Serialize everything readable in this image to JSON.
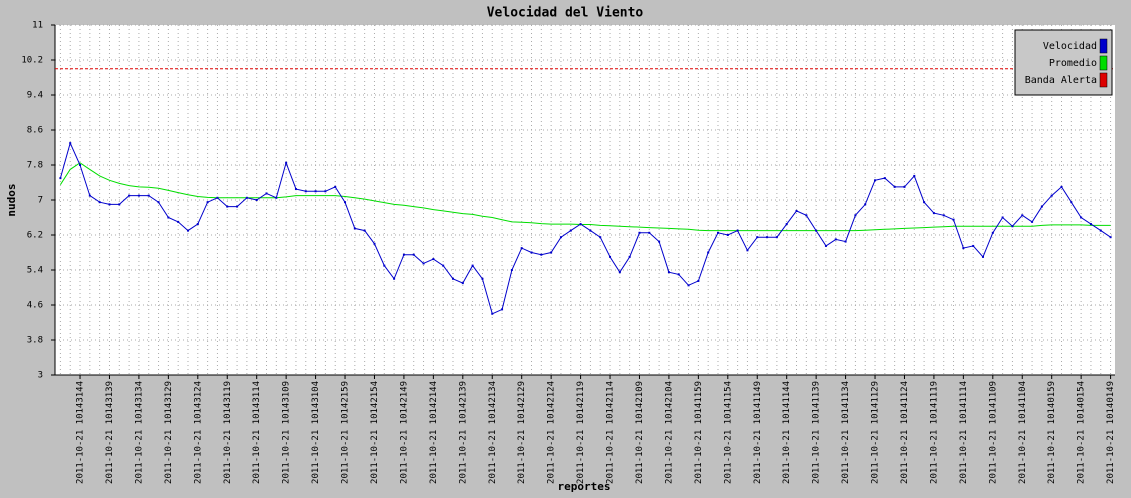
{
  "chart_data": {
    "type": "line",
    "title": "Velocidad del Viento",
    "y_label": "nudos",
    "x_label": "reportes",
    "ylim": [
      3,
      11
    ],
    "yticks": [
      3,
      3.8,
      4.6,
      5.4,
      6.2,
      7,
      7.8,
      8.6,
      9.4,
      10.2,
      11
    ],
    "grid": true,
    "legend": "top-right",
    "categories": [
      null,
      null,
      "2011-10-21 10143144",
      null,
      null,
      "2011-10-21 10143139",
      null,
      null,
      "2011-10-21 10143134",
      null,
      null,
      "2011-10-21 10143129",
      null,
      null,
      "2011-10-21 10143124",
      null,
      null,
      "2011-10-21 10143119",
      null,
      null,
      "2011-10-21 10143114",
      null,
      null,
      "2011-10-21 10143109",
      null,
      null,
      "2011-10-21 10143104",
      null,
      null,
      "2011-10-21 10142159",
      null,
      null,
      "2011-10-21 10142154",
      null,
      null,
      "2011-10-21 10142149",
      null,
      null,
      "2011-10-21 10142144",
      null,
      null,
      "2011-10-21 10142139",
      null,
      null,
      "2011-10-21 10142134",
      null,
      null,
      "2011-10-21 10142129",
      null,
      null,
      "2011-10-21 10142124",
      null,
      null,
      "2011-10-21 10142119",
      null,
      null,
      "2011-10-21 10142114",
      null,
      null,
      "2011-10-21 10142109",
      null,
      null,
      "2011-10-21 10142104",
      null,
      null,
      "2011-10-21 10141159",
      null,
      null,
      "2011-10-21 10141154",
      null,
      null,
      "2011-10-21 10141149",
      null,
      null,
      "2011-10-21 10141144",
      null,
      null,
      "2011-10-21 10141139",
      null,
      null,
      "2011-10-21 10141134",
      null,
      null,
      "2011-10-21 10141129",
      null,
      null,
      "2011-10-21 10141124",
      null,
      null,
      "2011-10-21 10141119",
      null,
      null,
      "2011-10-21 10141114",
      null,
      null,
      "2011-10-21 10141109",
      null,
      null,
      "2011-10-21 10141104",
      null,
      null,
      "2011-10-21 10140159",
      null,
      null,
      "2011-10-21 10140154",
      null,
      null,
      "2011-10-21 10140149"
    ],
    "series": [
      {
        "name": "Velocidad",
        "color": "#0000cc",
        "values": [
          7.5,
          8.3,
          7.8,
          7.1,
          6.95,
          6.9,
          6.9,
          7.1,
          7.1,
          7.1,
          6.95,
          6.6,
          6.5,
          6.3,
          6.45,
          6.95,
          7.05,
          6.85,
          6.85,
          7.05,
          7.0,
          7.15,
          7.05,
          7.85,
          7.25,
          7.2,
          7.2,
          7.2,
          7.3,
          6.95,
          6.35,
          6.3,
          6.0,
          5.5,
          5.2,
          5.75,
          5.75,
          5.55,
          5.65,
          5.5,
          5.2,
          5.1,
          5.5,
          5.2,
          4.4,
          4.5,
          5.4,
          5.9,
          5.8,
          5.75,
          5.8,
          6.15,
          6.3,
          6.45,
          6.3,
          6.15,
          5.7,
          5.35,
          5.7,
          6.25,
          6.25,
          6.05,
          5.35,
          5.3,
          5.05,
          5.15,
          5.8,
          6.25,
          6.2,
          6.3,
          5.85,
          6.15,
          6.15,
          6.15,
          6.45,
          6.75,
          6.65,
          6.3,
          5.95,
          6.1,
          6.05,
          6.65,
          6.9,
          7.45,
          7.5,
          7.3,
          7.3,
          7.55,
          6.95,
          6.7,
          6.65,
          6.55,
          5.9,
          5.95,
          5.7,
          6.25,
          6.6,
          6.4,
          6.65,
          6.5,
          6.85,
          7.1,
          7.3,
          6.95,
          6.6,
          6.45,
          6.3,
          6.15
        ]
      },
      {
        "name": "Promedio",
        "color": "#00dd00",
        "values": [
          7.35,
          7.7,
          7.85,
          7.7,
          7.55,
          7.45,
          7.38,
          7.33,
          7.3,
          7.29,
          7.27,
          7.22,
          7.17,
          7.12,
          7.08,
          7.06,
          7.05,
          7.05,
          7.05,
          7.05,
          7.05,
          7.05,
          7.05,
          7.07,
          7.1,
          7.1,
          7.1,
          7.1,
          7.1,
          7.08,
          7.05,
          7.02,
          6.98,
          6.94,
          6.9,
          6.88,
          6.85,
          6.82,
          6.78,
          6.75,
          6.72,
          6.69,
          6.67,
          6.63,
          6.6,
          6.55,
          6.5,
          6.49,
          6.48,
          6.46,
          6.45,
          6.45,
          6.45,
          6.44,
          6.44,
          6.42,
          6.41,
          6.4,
          6.39,
          6.38,
          6.37,
          6.36,
          6.35,
          6.34,
          6.33,
          6.31,
          6.3,
          6.3,
          6.3,
          6.3,
          6.3,
          6.3,
          6.3,
          6.3,
          6.3,
          6.3,
          6.3,
          6.3,
          6.3,
          6.3,
          6.3,
          6.3,
          6.31,
          6.32,
          6.33,
          6.34,
          6.35,
          6.36,
          6.37,
          6.38,
          6.39,
          6.4,
          6.4,
          6.4,
          6.4,
          6.4,
          6.4,
          6.4,
          6.4,
          6.4,
          6.42,
          6.43,
          6.43,
          6.43,
          6.43,
          6.42,
          6.42,
          6.42
        ]
      }
    ],
    "threshold": {
      "name": "Banda Alerta",
      "color": "#dd0000",
      "value": 10
    }
  }
}
